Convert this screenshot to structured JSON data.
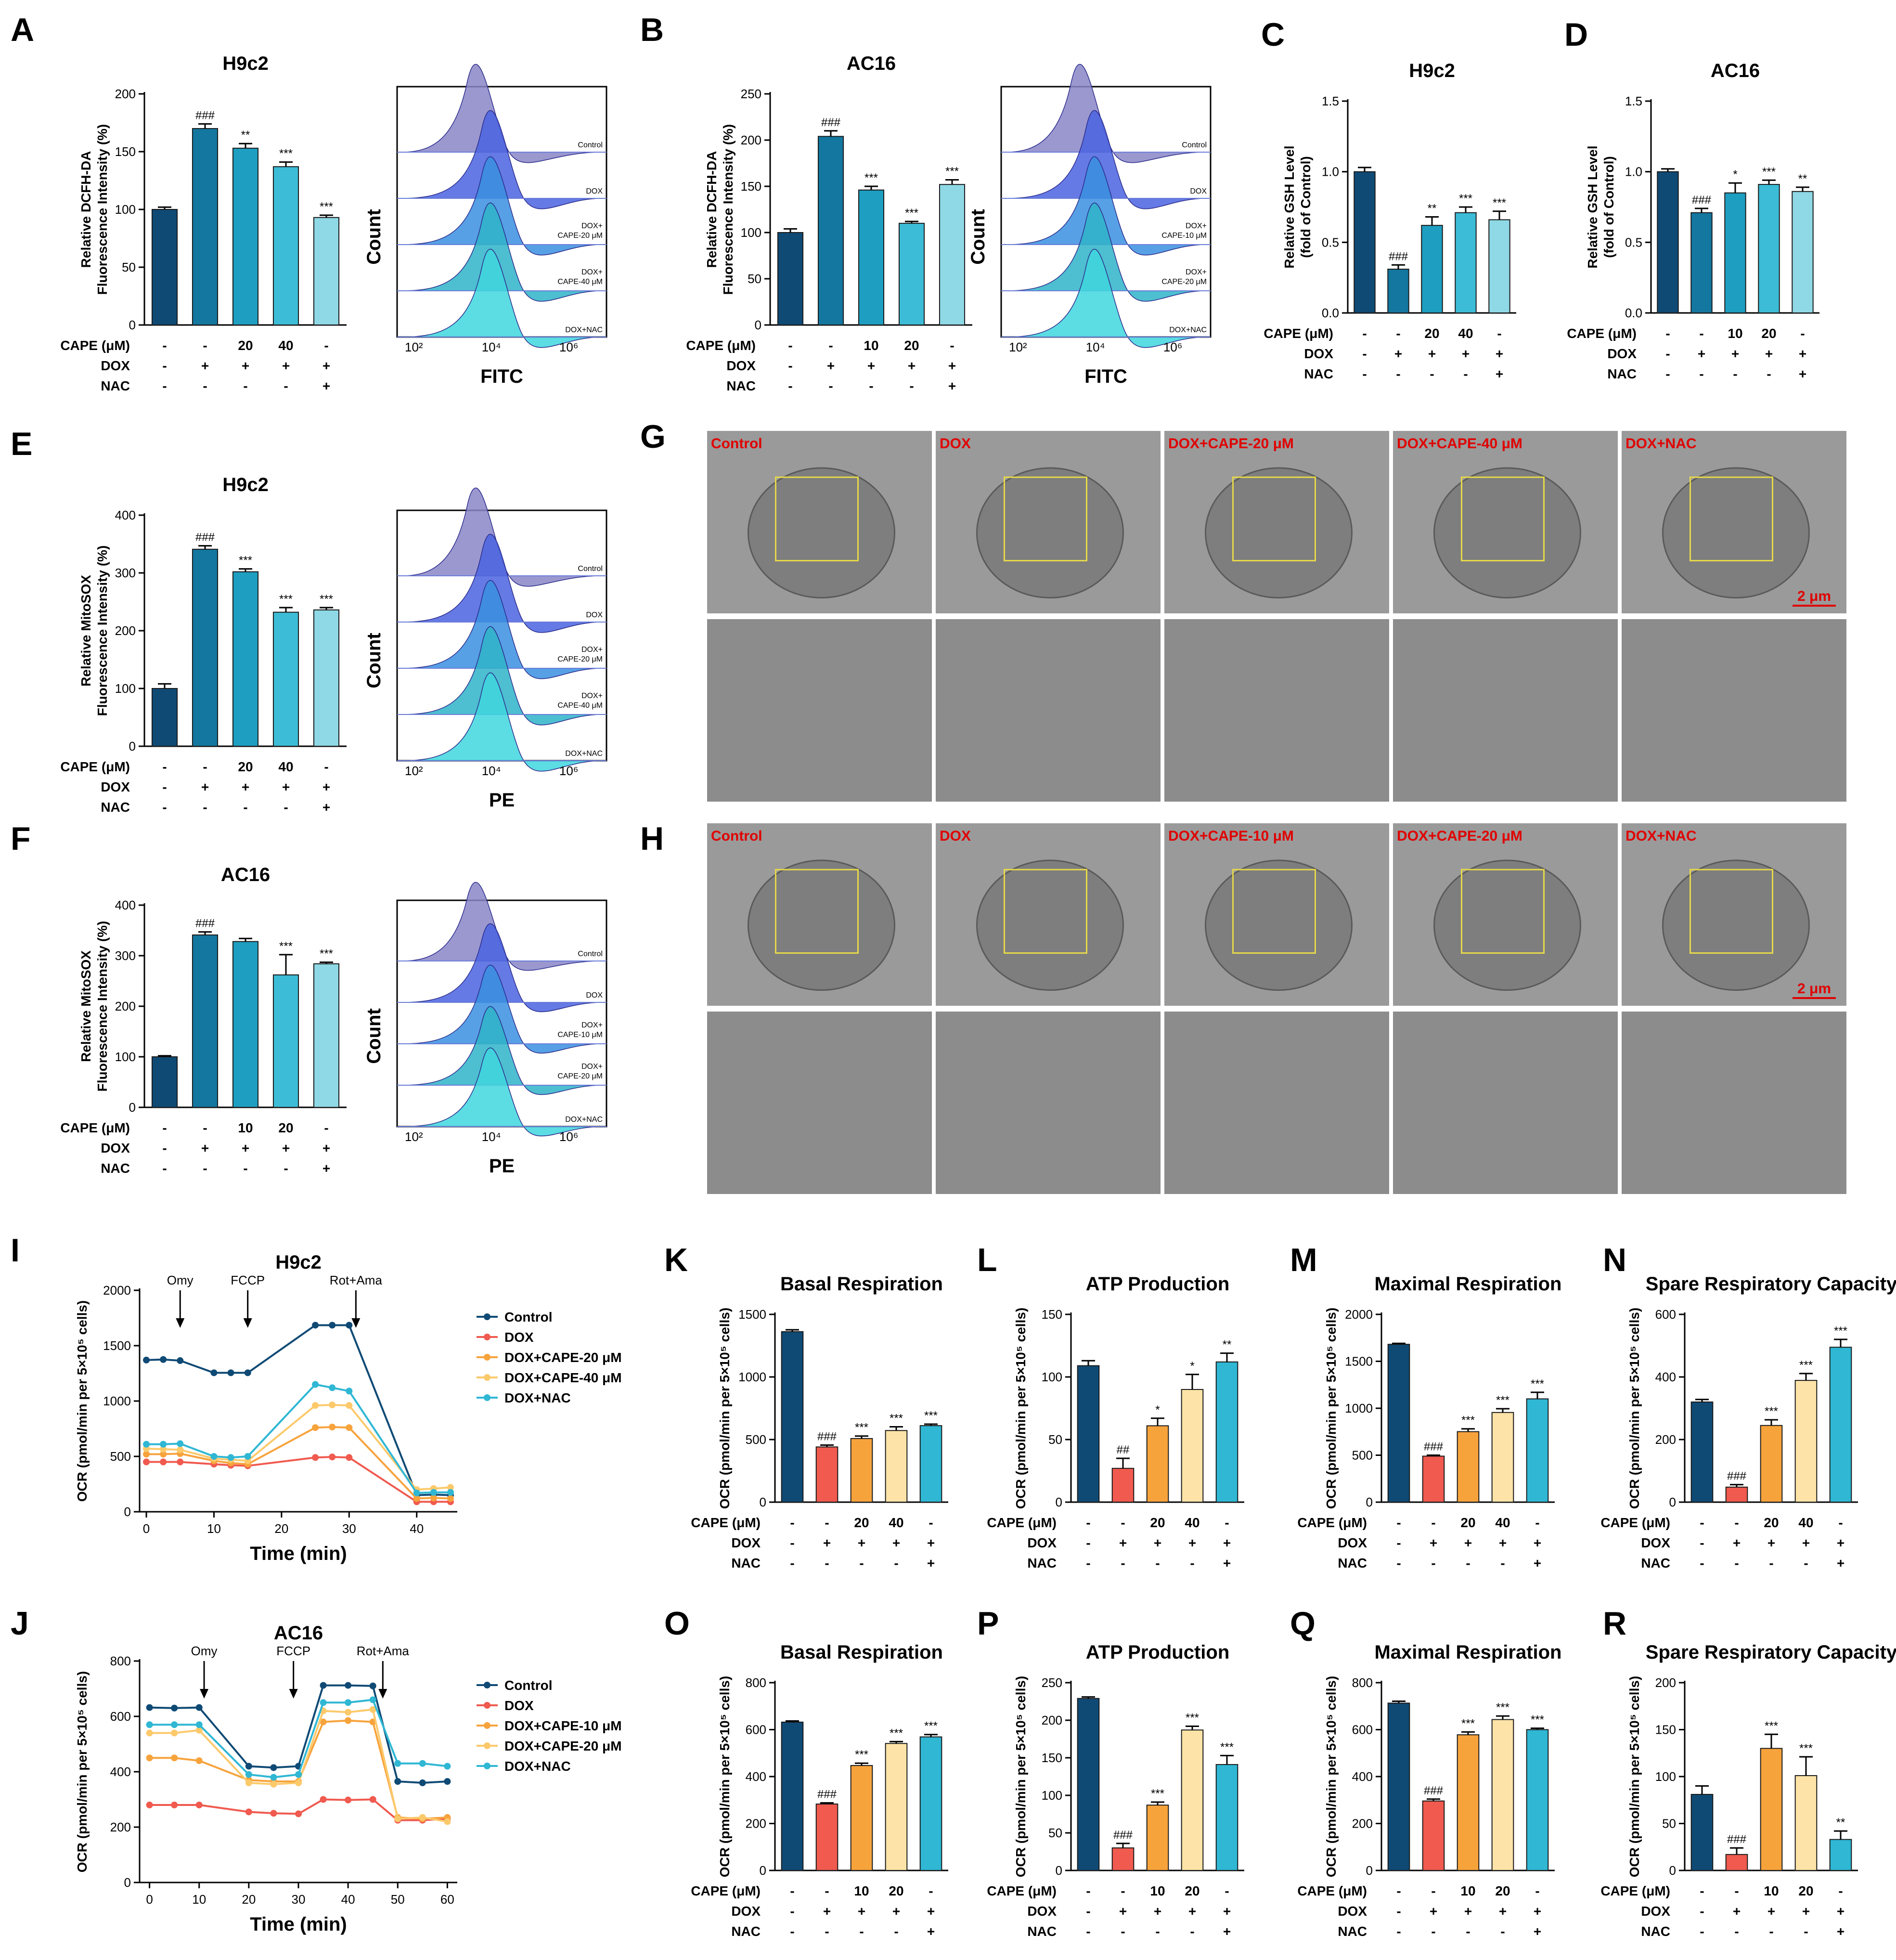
{
  "colors": {
    "navy": "#0f4a75",
    "blue": "#13779f",
    "teal": "#1e9ec0",
    "cyan": "#3cbcd6",
    "lightcyan": "#8fd8e6",
    "red": "#f05a4f",
    "orange": "#f7a33c",
    "cream": "#fde3a7",
    "aqua": "#2fb7d4"
  },
  "letters": {
    "A": "A",
    "B": "B",
    "C": "C",
    "D": "D",
    "E": "E",
    "F": "F",
    "G": "G",
    "H": "H",
    "I": "I",
    "J": "J",
    "K": "K",
    "L": "L",
    "M": "M",
    "N": "N",
    "O": "O",
    "P": "P",
    "Q": "Q",
    "R": "R"
  },
  "conditions": {
    "cape_label": "CAPE (μM)",
    "dox_label": "DOX",
    "nac_label": "NAC",
    "h9c2_cape": [
      "-",
      "-",
      "20",
      "40",
      "-"
    ],
    "ac16_cape": [
      "-",
      "-",
      "10",
      "20",
      "-"
    ],
    "dox": [
      "-",
      "+",
      "+",
      "+",
      "+"
    ],
    "nac": [
      "-",
      "-",
      "-",
      "-",
      "+"
    ]
  },
  "flow": {
    "count_label": "Count",
    "x_ticks": [
      "10²",
      "10⁴",
      "10⁶"
    ],
    "A": {
      "xlabel": "FITC",
      "labels": [
        "Control",
        "DOX",
        "DOX+ CAPE-20 μM",
        "DOX+ CAPE-40 μM",
        "DOX+NAC"
      ]
    },
    "B": {
      "xlabel": "FITC",
      "labels": [
        "Control",
        "DOX",
        "DOX+ CAPE-10 μM",
        "DOX+ CAPE-20 μM",
        "DOX+NAC"
      ]
    },
    "E": {
      "xlabel": "PE",
      "labels": [
        "Control",
        "DOX",
        "DOX+ CAPE-20 μM",
        "DOX+ CAPE-40 μM",
        "DOX+NAC"
      ]
    },
    "F": {
      "xlabel": "PE",
      "labels": [
        "Control",
        "DOX",
        "DOX+ CAPE-10 μM",
        "DOX+ CAPE-20 μM",
        "DOX+NAC"
      ]
    }
  },
  "tem": {
    "G": [
      "Control",
      "DOX",
      "DOX+CAPE-20 μM",
      "DOX+CAPE-40 μM",
      "DOX+NAC"
    ],
    "H": [
      "Control",
      "DOX",
      "DOX+CAPE-10 μM",
      "DOX+CAPE-20 μM",
      "DOX+NAC"
    ],
    "scale": "2 μm"
  },
  "chart_data": [
    {
      "id": "A",
      "type": "bar",
      "title": "H9c2",
      "ylabel": "Relative DCFH-DA Fluorescence Intensity (%)",
      "ylim": [
        0,
        200
      ],
      "yticks": [
        0,
        50,
        100,
        150,
        200
      ],
      "values": [
        100,
        170,
        153,
        137,
        93
      ],
      "errors": [
        2,
        4,
        4,
        4,
        2
      ],
      "sig": [
        "",
        "###",
        "**",
        "***",
        "***"
      ],
      "palette": "blues",
      "cape": "h9c2_cape",
      "nac": true
    },
    {
      "id": "B",
      "type": "bar",
      "title": "AC16",
      "ylabel": "Relative DCFH-DA Fluorescence Intensity (%)",
      "ylim": [
        0,
        250
      ],
      "yticks": [
        0,
        50,
        100,
        150,
        200,
        250
      ],
      "values": [
        100,
        204,
        146,
        110,
        152
      ],
      "errors": [
        4,
        6,
        4,
        2,
        5
      ],
      "sig": [
        "",
        "###",
        "***",
        "***",
        "***"
      ],
      "palette": "blues",
      "cape": "ac16_cape",
      "nac": true
    },
    {
      "id": "C",
      "type": "bar",
      "title": "H9c2",
      "ylabel": "Relative GSH Level (fold of Control)",
      "ylim": [
        0,
        1.5
      ],
      "yticks": [
        "0.0",
        "0.5",
        "1.0",
        "1.5"
      ],
      "values": [
        1.0,
        0.31,
        0.62,
        0.71,
        0.66
      ],
      "errors": [
        0.03,
        0.03,
        0.06,
        0.04,
        0.06
      ],
      "sig": [
        "",
        "###",
        "**",
        "***",
        "***"
      ],
      "palette": "blues",
      "cape": "h9c2_cape",
      "nac": true
    },
    {
      "id": "D",
      "type": "bar",
      "title": "AC16",
      "ylabel": "Relative GSH Level (fold of Control)",
      "ylim": [
        0,
        1.5
      ],
      "yticks": [
        "0.0",
        "0.5",
        "1.0",
        "1.5"
      ],
      "values": [
        1.0,
        0.71,
        0.85,
        0.91,
        0.86
      ],
      "errors": [
        0.02,
        0.03,
        0.07,
        0.03,
        0.03
      ],
      "sig": [
        "",
        "###",
        "*",
        "***",
        "**"
      ],
      "palette": "blues",
      "cape": "ac16_cape",
      "nac": true
    },
    {
      "id": "E",
      "type": "bar",
      "title": "H9c2",
      "ylabel": "Relative MitoSOX Fluorescence Intensity (%)",
      "ylim": [
        0,
        400
      ],
      "yticks": [
        0,
        100,
        200,
        300,
        400
      ],
      "values": [
        100,
        341,
        302,
        232,
        236
      ],
      "errors": [
        8,
        6,
        5,
        8,
        4
      ],
      "sig": [
        "",
        "###",
        "***",
        "***",
        "***"
      ],
      "palette": "blues",
      "cape": "h9c2_cape",
      "nac": true
    },
    {
      "id": "F",
      "type": "bar",
      "title": "AC16",
      "ylabel": "Relative MitoSOX Fluorescence Intensity (%)",
      "ylim": [
        0,
        400
      ],
      "yticks": [
        0,
        100,
        200,
        300,
        400
      ],
      "values": [
        100,
        341,
        328,
        262,
        284
      ],
      "errors": [
        2,
        6,
        6,
        40,
        3
      ],
      "sig": [
        "",
        "###",
        "",
        "***",
        "***"
      ],
      "palette": "blues",
      "cape": "ac16_cape",
      "nac": true
    },
    {
      "id": "K",
      "type": "bar",
      "title": "Basal Respiration",
      "ylabel": "OCR (pmol/min per 5×10⁵ cells)",
      "ylim": [
        0,
        1500
      ],
      "yticks": [
        0,
        500,
        1000,
        1500
      ],
      "values": [
        1362,
        441,
        508,
        572,
        611
      ],
      "errors": [
        15,
        15,
        20,
        30,
        12
      ],
      "sig": [
        "",
        "###",
        "***",
        "***",
        "***"
      ],
      "palette": "ocr",
      "cape": "h9c2_cape",
      "nac": true
    },
    {
      "id": "L",
      "type": "bar",
      "title": "ATP Production",
      "ylabel": "OCR (pmol/min per 5×10⁵ cells)",
      "ylim": [
        0,
        150
      ],
      "yticks": [
        0,
        50,
        100,
        150
      ],
      "values": [
        109,
        27,
        61,
        90,
        112
      ],
      "errors": [
        4,
        8,
        6,
        12,
        7
      ],
      "sig": [
        "",
        "##",
        "*",
        "*",
        "**"
      ],
      "palette": "ocr",
      "cape": "h9c2_cape",
      "nac": true
    },
    {
      "id": "M",
      "type": "bar",
      "title": "Maximal Respiration",
      "ylabel": "OCR (pmol/min per 5×10⁵ cells)",
      "ylim": [
        0,
        2000
      ],
      "yticks": [
        0,
        500,
        1000,
        1500,
        2000
      ],
      "values": [
        1681,
        490,
        751,
        955,
        1100
      ],
      "errors": [
        10,
        10,
        30,
        40,
        70
      ],
      "sig": [
        "",
        "###",
        "***",
        "***",
        "***"
      ],
      "palette": "ocr",
      "cape": "h9c2_cape",
      "nac": true
    },
    {
      "id": "N",
      "type": "bar",
      "title": "Spare Respiratory Capacity",
      "ylabel": "OCR (pmol/min per 5×10⁵ cells)",
      "ylim": [
        0,
        600
      ],
      "yticks": [
        0,
        200,
        400,
        600
      ],
      "values": [
        320,
        48,
        245,
        389,
        495
      ],
      "errors": [
        8,
        8,
        18,
        22,
        25
      ],
      "sig": [
        "",
        "###",
        "***",
        "***",
        "***"
      ],
      "palette": "ocr",
      "cape": "h9c2_cape",
      "nac": true
    },
    {
      "id": "O",
      "type": "bar",
      "title": "Basal Respiration",
      "ylabel": "OCR (pmol/min per 5×10⁵ cells)",
      "ylim": [
        0,
        800
      ],
      "yticks": [
        0,
        200,
        400,
        600,
        800
      ],
      "values": [
        632,
        283,
        447,
        541,
        569
      ],
      "errors": [
        5,
        5,
        10,
        8,
        10
      ],
      "sig": [
        "",
        "###",
        "***",
        "***",
        "***"
      ],
      "palette": "ocr",
      "cape": "ac16_cape",
      "nac": true
    },
    {
      "id": "P",
      "type": "bar",
      "title": "ATP Production",
      "ylabel": "OCR (pmol/min per 5×10⁵ cells)",
      "ylim": [
        0,
        250
      ],
      "yticks": [
        0,
        50,
        100,
        150,
        200,
        250
      ],
      "values": [
        229,
        30,
        87,
        187,
        141
      ],
      "errors": [
        2,
        6,
        4,
        5,
        12
      ],
      "sig": [
        "",
        "###",
        "***",
        "***",
        "***"
      ],
      "palette": "ocr",
      "cape": "ac16_cape",
      "nac": true
    },
    {
      "id": "Q",
      "type": "bar",
      "title": "Maximal Respiration",
      "ylabel": "OCR (pmol/min per 5×10⁵ cells)",
      "ylim": [
        0,
        800
      ],
      "yticks": [
        0,
        200,
        400,
        600,
        800
      ],
      "values": [
        713,
        296,
        578,
        643,
        600
      ],
      "errors": [
        8,
        8,
        12,
        15,
        6
      ],
      "sig": [
        "",
        "###",
        "***",
        "***",
        "***"
      ],
      "palette": "ocr",
      "cape": "ac16_cape",
      "nac": true
    },
    {
      "id": "R",
      "type": "bar",
      "title": "Spare Respiratory Capacity",
      "ylabel": "OCR (pmol/min per 5×10⁵ cells)",
      "ylim": [
        0,
        200
      ],
      "yticks": [
        0,
        50,
        100,
        150,
        200
      ],
      "values": [
        81,
        17,
        130,
        101,
        33
      ],
      "errors": [
        9,
        7,
        15,
        20,
        9
      ],
      "sig": [
        "",
        "###",
        "***",
        "***",
        "**"
      ],
      "palette": "ocr",
      "cape": "ac16_cape",
      "nac": true
    },
    {
      "id": "I",
      "type": "line",
      "title": "H9c2",
      "xlabel": "Time (min)",
      "ylabel": "OCR (pmol/min per 5×10⁵ cells)",
      "xlim": [
        -1,
        46
      ],
      "ylim": [
        0,
        2000
      ],
      "xticks": [
        0,
        10,
        20,
        30,
        40
      ],
      "yticks": [
        0,
        500,
        1000,
        1500,
        2000
      ],
      "x": [
        0,
        2.5,
        5,
        10,
        12.5,
        15,
        25,
        27.5,
        30,
        40,
        42.5,
        45
      ],
      "annotations": [
        {
          "text": "Omy",
          "x": 5
        },
        {
          "text": "FCCP",
          "x": 15
        },
        {
          "text": "Rot+Ama",
          "x": 31
        }
      ],
      "series": [
        {
          "name": "Control",
          "values": [
            1370,
            1375,
            1365,
            1255,
            1255,
            1255,
            1685,
            1685,
            1685,
            150,
            155,
            150
          ]
        },
        {
          "name": "DOX",
          "values": [
            450,
            450,
            450,
            430,
            420,
            415,
            490,
            495,
            490,
            90,
            90,
            90
          ]
        },
        {
          "name": "DOX+CAPE-20 μM",
          "values": [
            520,
            520,
            525,
            460,
            440,
            430,
            760,
            765,
            760,
            120,
            125,
            120
          ]
        },
        {
          "name": "DOX+CAPE-40 μM",
          "values": [
            570,
            565,
            560,
            480,
            470,
            460,
            960,
            965,
            960,
            200,
            210,
            220
          ]
        },
        {
          "name": "DOX+NAC",
          "values": [
            610,
            610,
            615,
            500,
            490,
            500,
            1150,
            1120,
            1090,
            170,
            175,
            175
          ]
        }
      ]
    },
    {
      "id": "J",
      "type": "line",
      "title": "AC16",
      "xlabel": "Time (min)",
      "ylabel": "OCR (pmol/min per 5×10⁵ cells)",
      "xlim": [
        -2,
        62
      ],
      "ylim": [
        0,
        800
      ],
      "xticks": [
        0,
        10,
        20,
        30,
        40,
        50,
        60
      ],
      "yticks": [
        0,
        200,
        400,
        600,
        800
      ],
      "x": [
        0,
        5,
        10,
        20,
        25,
        30,
        35,
        40,
        45,
        50,
        55,
        60
      ],
      "annotations": [
        {
          "text": "Omy",
          "x": 11
        },
        {
          "text": "FCCP",
          "x": 29
        },
        {
          "text": "Rot+Ama",
          "x": 47
        }
      ],
      "series": [
        {
          "name": "Control",
          "values": [
            632,
            630,
            632,
            420,
            415,
            420,
            712,
            712,
            710,
            365,
            360,
            365
          ]
        },
        {
          "name": "DOX",
          "values": [
            280,
            280,
            280,
            255,
            250,
            248,
            300,
            298,
            300,
            225,
            225,
            230
          ]
        },
        {
          "name": "DOX+CAPE-10 μM",
          "values": [
            450,
            450,
            440,
            370,
            365,
            365,
            580,
            585,
            580,
            235,
            230,
            235
          ]
        },
        {
          "name": "DOX+CAPE-20 μM",
          "values": [
            540,
            540,
            550,
            360,
            355,
            360,
            620,
            615,
            625,
            230,
            235,
            220
          ]
        },
        {
          "name": "DOX+NAC",
          "values": [
            570,
            570,
            570,
            390,
            380,
            390,
            650,
            650,
            660,
            430,
            430,
            420
          ]
        }
      ]
    }
  ]
}
